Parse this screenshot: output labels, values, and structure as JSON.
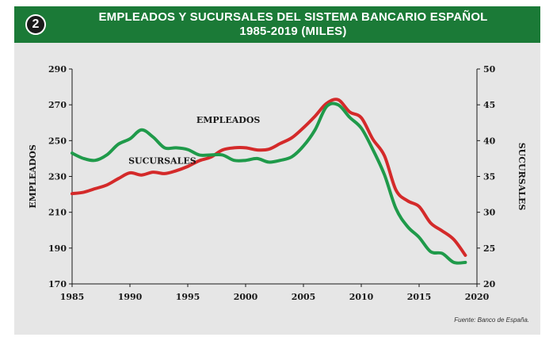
{
  "header": {
    "badge": "2",
    "title_line1": "EMPLEADOS Y SUCURSALES DEL SISTEMA BANCARIO ESPAÑOL",
    "title_line2": "1985-2019 (MILES)"
  },
  "source": "Fuente: Banco de España.",
  "colors": {
    "header_bg": "#1b7a37",
    "empleados": "#1f9a4a",
    "sucursales": "#d42a2a",
    "panel_bg": "#e6e6e6"
  },
  "chart_data": {
    "type": "line",
    "title": "EMPLEADOS Y SUCURSALES DEL SISTEMA BANCARIO ESPAÑOL 1985-2019 (MILES)",
    "x": [
      1985,
      1986,
      1987,
      1988,
      1989,
      1990,
      1991,
      1992,
      1993,
      1994,
      1995,
      1996,
      1997,
      1998,
      1999,
      2000,
      2001,
      2002,
      2003,
      2004,
      2005,
      2006,
      2007,
      2008,
      2009,
      2010,
      2011,
      2012,
      2013,
      2014,
      2015,
      2016,
      2017,
      2018,
      2019,
      2020
    ],
    "xlim": [
      1985,
      2020
    ],
    "xticks": [
      1985,
      1990,
      1995,
      2000,
      2005,
      2010,
      2015,
      2020
    ],
    "left_axis": {
      "label": "EMPLEADOS",
      "ylim": [
        170,
        290
      ],
      "ticks": [
        170,
        190,
        210,
        230,
        250,
        270,
        290
      ]
    },
    "right_axis": {
      "label": "SUCURSALES",
      "ylim": [
        20,
        50
      ],
      "ticks": [
        20,
        25,
        30,
        35,
        40,
        45,
        50
      ]
    },
    "series": [
      {
        "name": "EMPLEADOS",
        "axis": "left",
        "x": [
          1985,
          1986,
          1987,
          1988,
          1989,
          1990,
          1991,
          1992,
          1993,
          1994,
          1995,
          1996,
          1997,
          1998,
          1999,
          2000,
          2001,
          2002,
          2003,
          2004,
          2005,
          2006,
          2007,
          2008,
          2009,
          2010,
          2011,
          2012,
          2013,
          2014,
          2015,
          2016,
          2017,
          2018,
          2019
        ],
        "values": [
          243,
          240,
          239,
          242,
          248,
          251,
          256,
          252,
          246,
          246,
          245,
          242,
          242,
          242,
          239,
          239,
          240,
          238,
          239,
          241,
          247,
          256,
          269,
          270,
          263,
          257,
          245,
          231,
          212,
          202,
          196,
          188,
          187,
          182,
          182
        ]
      },
      {
        "name": "SUCURSALES",
        "axis": "right",
        "x": [
          1985,
          1986,
          1987,
          1988,
          1989,
          1990,
          1991,
          1992,
          1993,
          1994,
          1995,
          1996,
          1997,
          1998,
          1999,
          2000,
          2001,
          2002,
          2003,
          2004,
          2005,
          2006,
          2007,
          2008,
          2009,
          2010,
          2011,
          2012,
          2013,
          2014,
          2015,
          2016,
          2017,
          2018,
          2019
        ],
        "values": [
          32.6,
          32.8,
          33.3,
          33.8,
          34.7,
          35.5,
          35.2,
          35.6,
          35.4,
          35.8,
          36.4,
          37.2,
          37.7,
          38.7,
          39.0,
          39.0,
          38.7,
          38.8,
          39.6,
          40.4,
          41.8,
          43.4,
          45.2,
          45.7,
          44.0,
          43.2,
          40.2,
          37.9,
          33.1,
          31.6,
          30.8,
          28.5,
          27.4,
          26.2,
          24.0
        ]
      }
    ],
    "annotations": [
      {
        "text": "EMPLEADOS",
        "x": 1998.5,
        "y": 260,
        "axis": "left"
      },
      {
        "text": "SUCURSALES",
        "x": 1992.8,
        "y": 237,
        "axis": "left"
      }
    ]
  }
}
